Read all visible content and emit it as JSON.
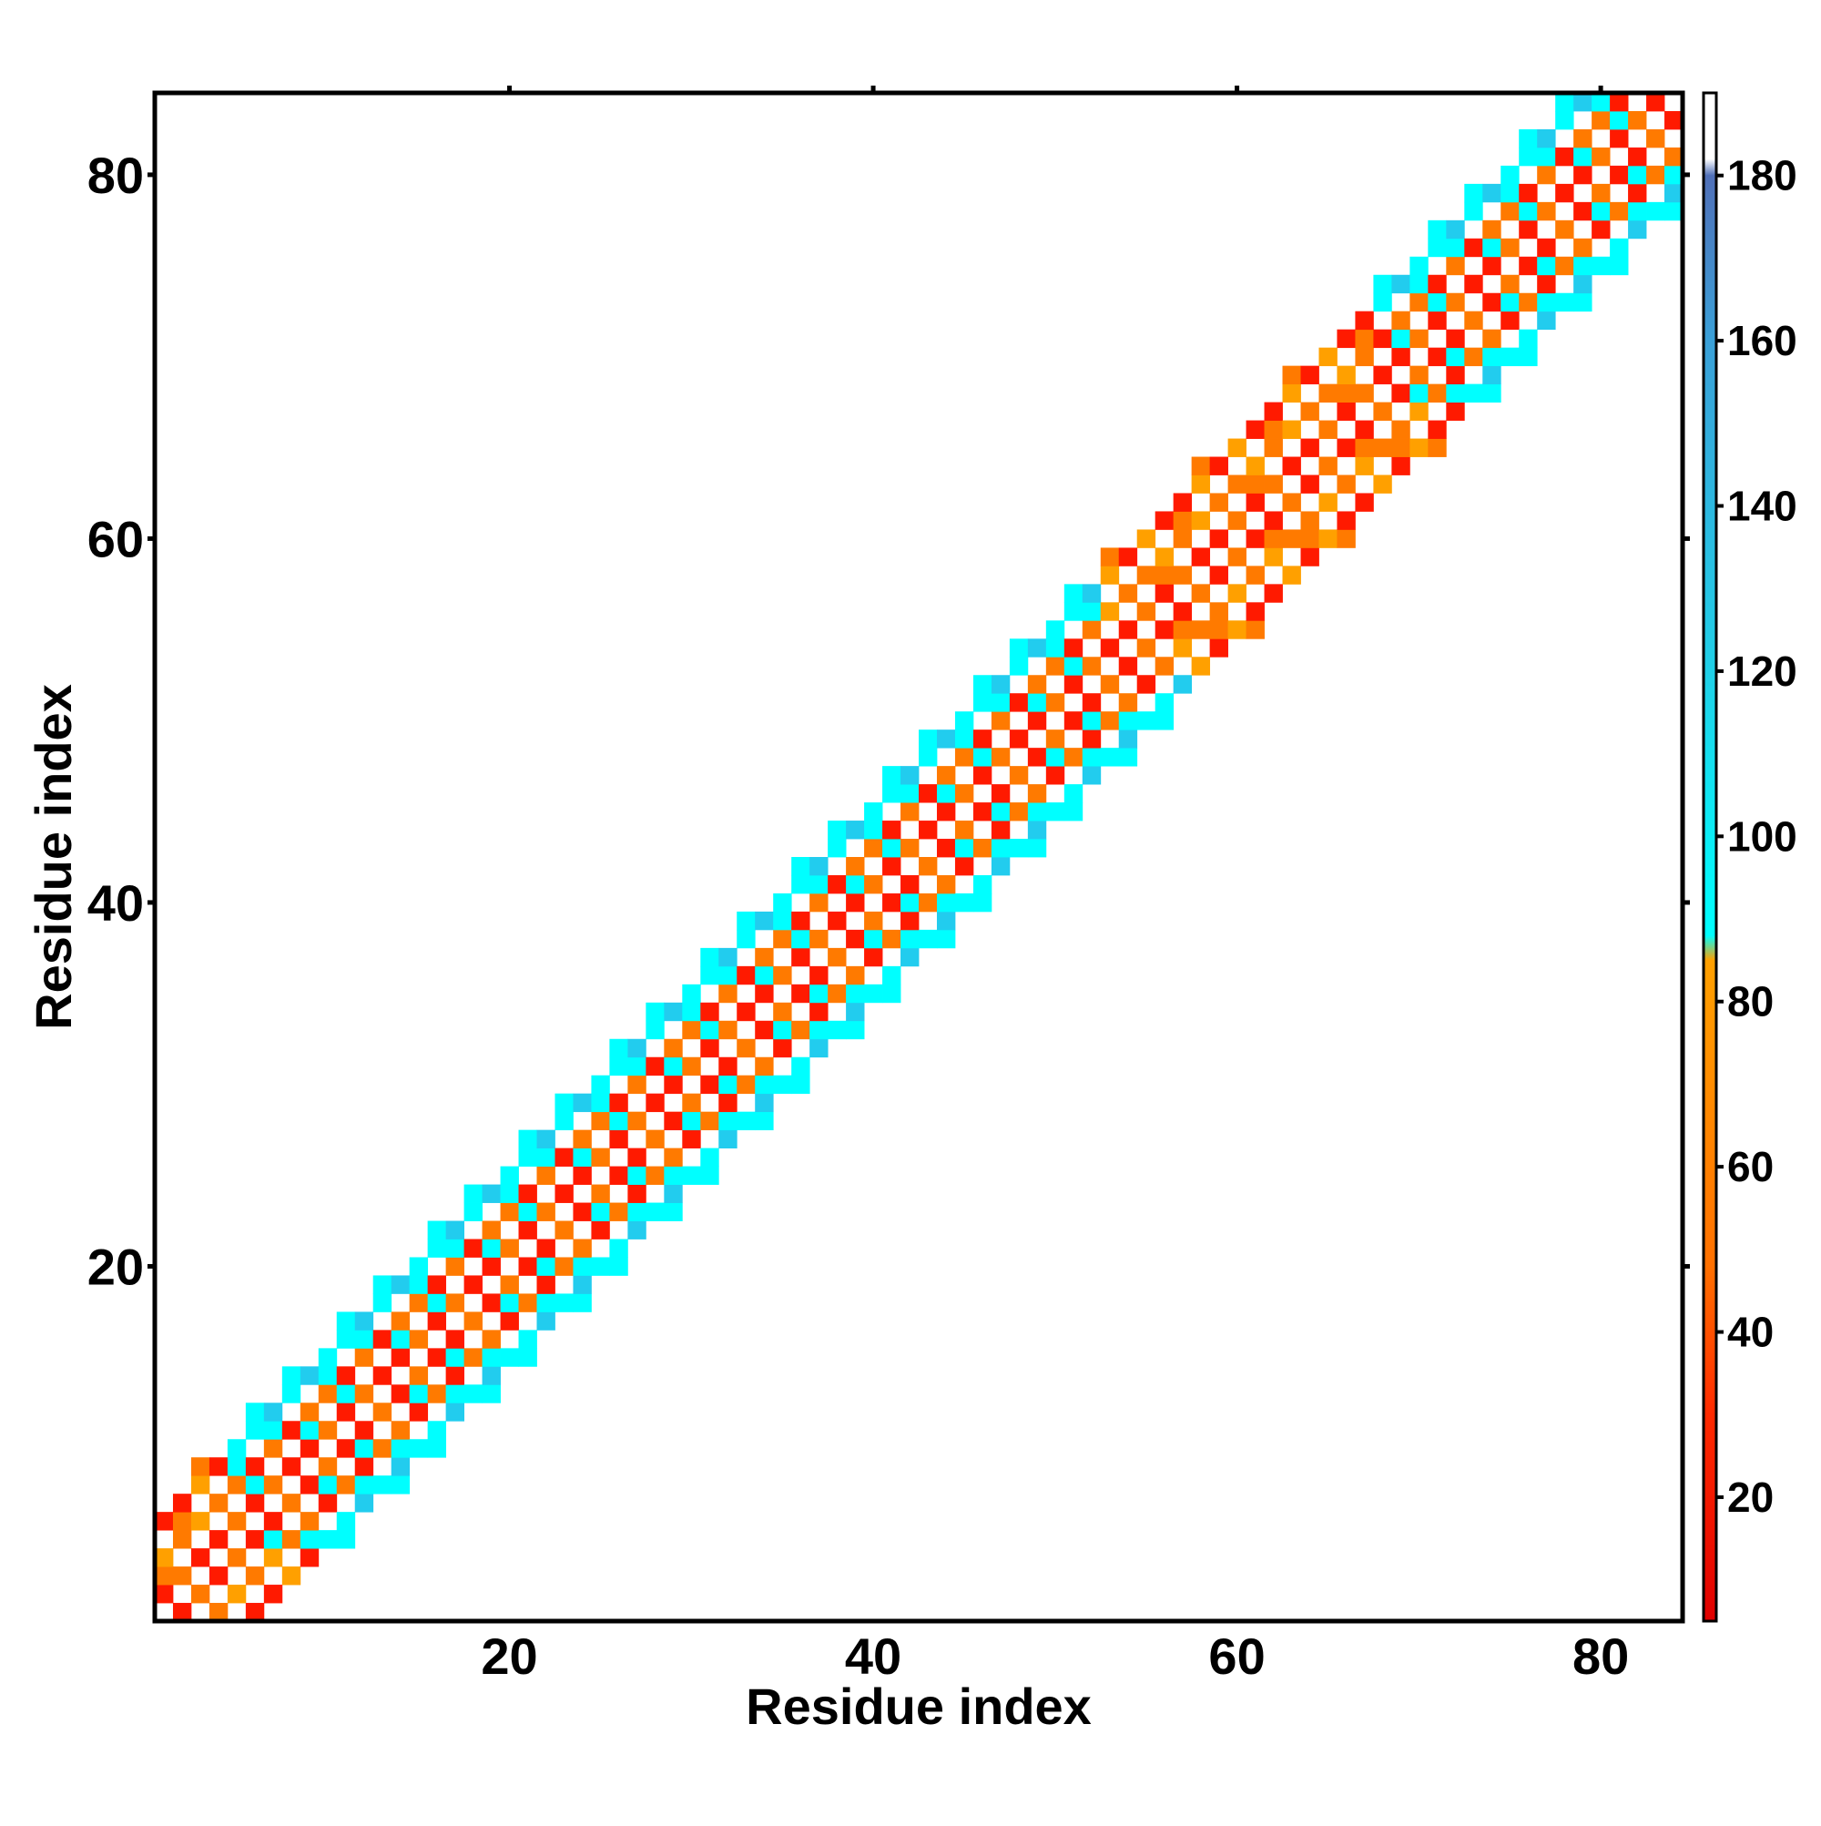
{
  "chart_data": {
    "type": "heatmap",
    "title": "",
    "xlabel": "Residue index",
    "ylabel": "Residue index",
    "xlim": [
      0.5,
      84.5
    ],
    "ylim": [
      0.5,
      84.5
    ],
    "x_ticks": [
      20,
      40,
      60,
      80
    ],
    "y_ticks": [
      20,
      40,
      60,
      80
    ],
    "x_tick_labels": [
      "20",
      "40",
      "60",
      "80"
    ],
    "y_tick_labels": [
      "20",
      "40",
      "60",
      "80"
    ],
    "n_residues": 84,
    "band_half_width": 6,
    "diagonal_blank": true,
    "grid": false,
    "colorbar": {
      "min": 5,
      "max": 190,
      "ticks": [
        20,
        40,
        60,
        80,
        100,
        120,
        140,
        160,
        180
      ],
      "tick_labels": [
        "20",
        "40",
        "60",
        "80",
        "100",
        "120",
        "140",
        "160",
        "180"
      ],
      "stops": [
        {
          "value": 5,
          "color": "#e00000"
        },
        {
          "value": 30,
          "color": "#ff2a00"
        },
        {
          "value": 48,
          "color": "#ff7000"
        },
        {
          "value": 85,
          "color": "#ffa000"
        },
        {
          "value": 88,
          "color": "#00ffff"
        },
        {
          "value": 120,
          "color": "#20d0e8"
        },
        {
          "value": 160,
          "color": "#3aa0d8"
        },
        {
          "value": 180,
          "color": "#5070b8"
        },
        {
          "value": 182,
          "color": "#ffffff"
        },
        {
          "value": 190,
          "color": "#ffffff"
        }
      ]
    },
    "palette": {
      "red": "#ff1a00",
      "orange": "#ff7a00",
      "amber": "#ffa000",
      "cyan": "#00ffff",
      "sky": "#22ccee"
    },
    "cells_note_values": "distance-dependent values forming alternating pattern along the main diagonal",
    "alternating_values": [
      22,
      48,
      75,
      95,
      125
    ],
    "legend": "colorbar-right"
  }
}
